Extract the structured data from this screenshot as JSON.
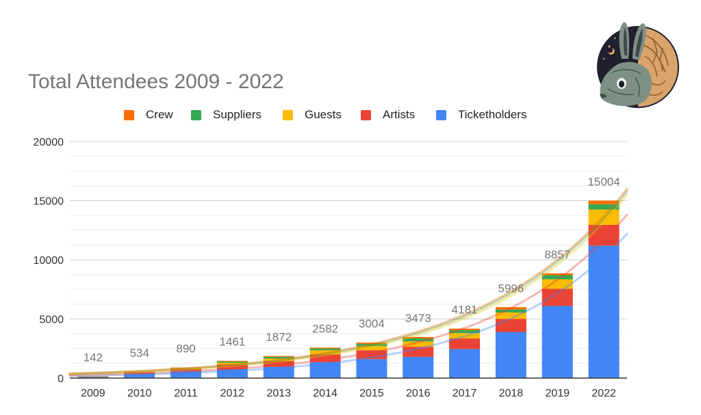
{
  "colors": {
    "crew": "#FF6D01",
    "suppliers": "#34A853",
    "guests": "#FBBC04",
    "artists": "#EA4335",
    "ticketholders": "#4285F4",
    "grid": "#CCCCCC",
    "axis": "#333333",
    "total_label": "#757575"
  },
  "chart_data": {
    "type": "bar",
    "stacked": true,
    "title": "Total Attendees 2009 - 2022",
    "xlabel": "",
    "ylabel": "",
    "ylim": [
      0,
      20000
    ],
    "yticks": [
      0,
      5000,
      10000,
      15000,
      20000
    ],
    "minor_gridlines": true,
    "legend_position": "top",
    "legend": [
      {
        "name": "Crew",
        "color_key": "crew",
        "icon": "square-swatch-icon"
      },
      {
        "name": "Suppliers",
        "color_key": "suppliers",
        "icon": "square-swatch-icon"
      },
      {
        "name": "Guests",
        "color_key": "guests",
        "icon": "square-swatch-icon"
      },
      {
        "name": "Artists",
        "color_key": "artists",
        "icon": "square-swatch-icon"
      },
      {
        "name": "Ticketholders",
        "color_key": "ticketholders",
        "icon": "square-swatch-icon"
      }
    ],
    "categories": [
      "2009",
      "2010",
      "2011",
      "2012",
      "2013",
      "2014",
      "2015",
      "2016",
      "2017",
      "2018",
      "2019",
      "2022"
    ],
    "series": [
      {
        "name": "Ticketholders",
        "color_key": "ticketholders",
        "values": [
          90,
          380,
          600,
          750,
          950,
          1350,
          1600,
          1800,
          2450,
          3900,
          6100,
          11200
        ]
      },
      {
        "name": "Artists",
        "color_key": "artists",
        "values": [
          30,
          100,
          150,
          400,
          500,
          650,
          750,
          850,
          900,
          1100,
          1450,
          1750
        ]
      },
      {
        "name": "Guests",
        "color_key": "guests",
        "values": [
          10,
          30,
          80,
          150,
          200,
          350,
          350,
          450,
          450,
          550,
          800,
          1300
        ]
      },
      {
        "name": "Suppliers",
        "color_key": "suppliers",
        "values": [
          7,
          14,
          30,
          100,
          150,
          150,
          200,
          250,
          250,
          250,
          350,
          450
        ]
      },
      {
        "name": "Crew",
        "color_key": "crew",
        "values": [
          5,
          10,
          30,
          61,
          72,
          82,
          104,
          123,
          131,
          196,
          157,
          304
        ]
      }
    ],
    "totals": [
      142,
      534,
      890,
      1461,
      1872,
      2582,
      3004,
      3473,
      4181,
      5996,
      8857,
      15004
    ],
    "trendlines": {
      "type": "exponential",
      "series": [
        {
          "name": "Ticketholders",
          "color_key": "ticketholders",
          "start_value": 175,
          "end_value": 12200
        },
        {
          "name": "Artists",
          "color_key": "artists",
          "start_value": 240,
          "end_value": 13800
        },
        {
          "name": "Guests",
          "color_key": "guests",
          "start_value": 330,
          "end_value": 15500
        },
        {
          "name": "Suppliers",
          "color_key": "suppliers",
          "start_value": 360,
          "end_value": 15800
        },
        {
          "name": "Crew",
          "color_key": "crew",
          "start_value": 380,
          "end_value": 16000
        }
      ]
    }
  },
  "logo": {
    "icon": "rabbit-logo-icon",
    "colors": {
      "ring": "#1F1F2E",
      "wood": "#D9A46B",
      "grain": "#8A5A2B",
      "rabbit": "#7E8F86",
      "rabbit_dark": "#3F4A46"
    }
  }
}
